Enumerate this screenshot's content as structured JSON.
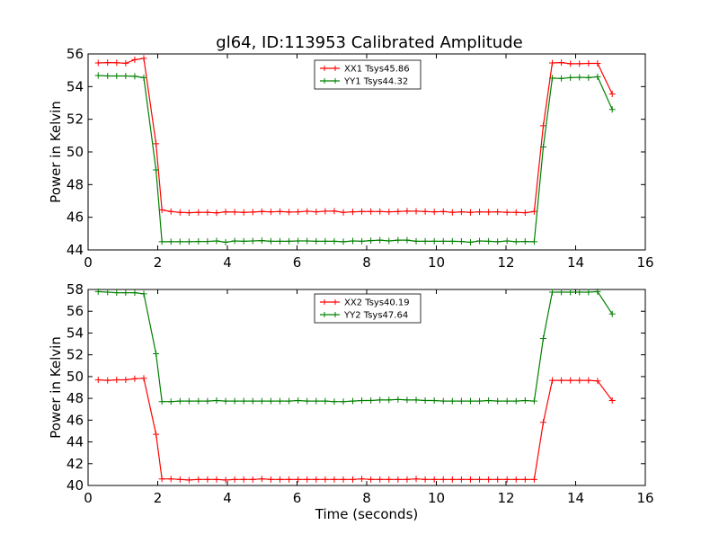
{
  "title": "gl64, ID:113953 Calibrated Amplitude",
  "colors": {
    "red": "#ff0000",
    "green": "#008000"
  },
  "chart_data": [
    {
      "type": "line",
      "title": "gl64, ID:113953 Calibrated Amplitude",
      "xlabel": "",
      "ylabel": "Power in Kelvin",
      "xlim": [
        0,
        16
      ],
      "ylim": [
        44,
        56
      ],
      "xticks": [
        0,
        2,
        4,
        6,
        8,
        10,
        12,
        14,
        16
      ],
      "yticks": [
        44,
        46,
        48,
        50,
        52,
        54,
        56
      ],
      "grid": false,
      "legend_position": "top-center",
      "x": [
        0.29,
        0.56,
        0.82,
        1.08,
        1.34,
        1.6,
        1.95,
        2.12,
        2.38,
        2.64,
        2.9,
        3.17,
        3.43,
        3.69,
        3.95,
        4.21,
        4.47,
        4.73,
        4.99,
        5.25,
        5.51,
        5.77,
        6.03,
        6.29,
        6.55,
        6.81,
        7.07,
        7.33,
        7.6,
        7.86,
        8.12,
        8.38,
        8.64,
        8.9,
        9.16,
        9.42,
        9.68,
        9.94,
        10.2,
        10.46,
        10.72,
        10.98,
        11.24,
        11.5,
        11.76,
        12.03,
        12.29,
        12.55,
        12.81,
        13.07,
        13.33,
        13.59,
        13.85,
        14.11,
        14.37,
        14.63,
        15.05
      ],
      "series": [
        {
          "name": "XX1 Tsys45.86",
          "color": "#ff0000",
          "values": [
            55.45,
            55.47,
            55.46,
            55.43,
            55.65,
            55.73,
            50.5,
            46.45,
            46.35,
            46.3,
            46.28,
            46.3,
            46.3,
            46.27,
            46.33,
            46.32,
            46.3,
            46.32,
            46.35,
            46.33,
            46.35,
            46.32,
            46.33,
            46.37,
            46.33,
            46.37,
            46.38,
            46.3,
            46.33,
            46.35,
            46.35,
            46.35,
            46.33,
            46.35,
            46.38,
            46.37,
            46.35,
            46.33,
            46.35,
            46.3,
            46.33,
            46.3,
            46.33,
            46.32,
            46.33,
            46.3,
            46.3,
            46.28,
            46.35,
            51.6,
            55.45,
            55.47,
            55.4,
            55.4,
            55.42,
            55.42,
            53.55
          ]
        },
        {
          "name": "YY1 Tsys44.32",
          "color": "#008000",
          "values": [
            54.68,
            54.65,
            54.65,
            54.65,
            54.63,
            54.55,
            48.9,
            44.5,
            44.5,
            44.5,
            44.5,
            44.52,
            44.52,
            44.55,
            44.47,
            44.55,
            44.53,
            44.55,
            44.57,
            44.53,
            44.53,
            44.53,
            44.55,
            44.55,
            44.53,
            44.53,
            44.53,
            44.5,
            44.55,
            44.53,
            44.57,
            44.6,
            44.55,
            44.6,
            44.6,
            44.53,
            44.53,
            44.53,
            44.53,
            44.53,
            44.52,
            44.47,
            44.55,
            44.53,
            44.5,
            44.55,
            44.5,
            44.52,
            44.5,
            50.3,
            54.52,
            54.5,
            54.55,
            54.57,
            54.55,
            54.6,
            52.6
          ]
        }
      ]
    },
    {
      "type": "line",
      "title": "",
      "xlabel": "Time (seconds)",
      "ylabel": "Power in Kelvin",
      "xlim": [
        0,
        16
      ],
      "ylim": [
        40,
        58
      ],
      "xticks": [
        0,
        2,
        4,
        6,
        8,
        10,
        12,
        14,
        16
      ],
      "yticks": [
        40,
        42,
        44,
        46,
        48,
        50,
        52,
        54,
        56,
        58
      ],
      "grid": false,
      "legend_position": "top-center",
      "x": [
        0.29,
        0.56,
        0.82,
        1.08,
        1.34,
        1.6,
        1.95,
        2.12,
        2.38,
        2.64,
        2.9,
        3.17,
        3.43,
        3.69,
        3.95,
        4.21,
        4.47,
        4.73,
        4.99,
        5.25,
        5.51,
        5.77,
        6.03,
        6.29,
        6.55,
        6.81,
        7.07,
        7.33,
        7.6,
        7.86,
        8.12,
        8.38,
        8.64,
        8.9,
        9.16,
        9.42,
        9.68,
        9.94,
        10.2,
        10.46,
        10.72,
        10.98,
        11.24,
        11.5,
        11.76,
        12.03,
        12.29,
        12.55,
        12.81,
        13.07,
        13.33,
        13.59,
        13.85,
        14.11,
        14.37,
        14.63,
        15.05
      ],
      "series": [
        {
          "name": "XX2 Tsys40.19",
          "color": "#ff0000",
          "values": [
            49.7,
            49.65,
            49.7,
            49.7,
            49.8,
            49.85,
            44.7,
            40.6,
            40.6,
            40.55,
            40.5,
            40.55,
            40.55,
            40.55,
            40.5,
            40.55,
            40.55,
            40.55,
            40.6,
            40.55,
            40.55,
            40.55,
            40.55,
            40.55,
            40.55,
            40.55,
            40.55,
            40.55,
            40.55,
            40.6,
            40.55,
            40.55,
            40.55,
            40.55,
            40.55,
            40.6,
            40.55,
            40.55,
            40.55,
            40.55,
            40.55,
            40.55,
            40.55,
            40.55,
            40.55,
            40.55,
            40.55,
            40.55,
            40.55,
            45.8,
            49.65,
            49.65,
            49.65,
            49.65,
            49.65,
            49.6,
            47.8
          ]
        },
        {
          "name": "YY2 Tsys47.64",
          "color": "#008000",
          "values": [
            57.8,
            57.75,
            57.7,
            57.7,
            57.7,
            57.6,
            52.1,
            47.7,
            47.7,
            47.75,
            47.75,
            47.75,
            47.75,
            47.8,
            47.75,
            47.75,
            47.75,
            47.75,
            47.75,
            47.75,
            47.75,
            47.75,
            47.8,
            47.75,
            47.75,
            47.75,
            47.7,
            47.7,
            47.75,
            47.8,
            47.8,
            47.85,
            47.85,
            47.9,
            47.85,
            47.85,
            47.8,
            47.8,
            47.75,
            47.75,
            47.75,
            47.75,
            47.75,
            47.8,
            47.75,
            47.75,
            47.75,
            47.8,
            47.75,
            53.5,
            57.75,
            57.75,
            57.75,
            57.75,
            57.75,
            57.8,
            55.75
          ]
        }
      ]
    }
  ]
}
